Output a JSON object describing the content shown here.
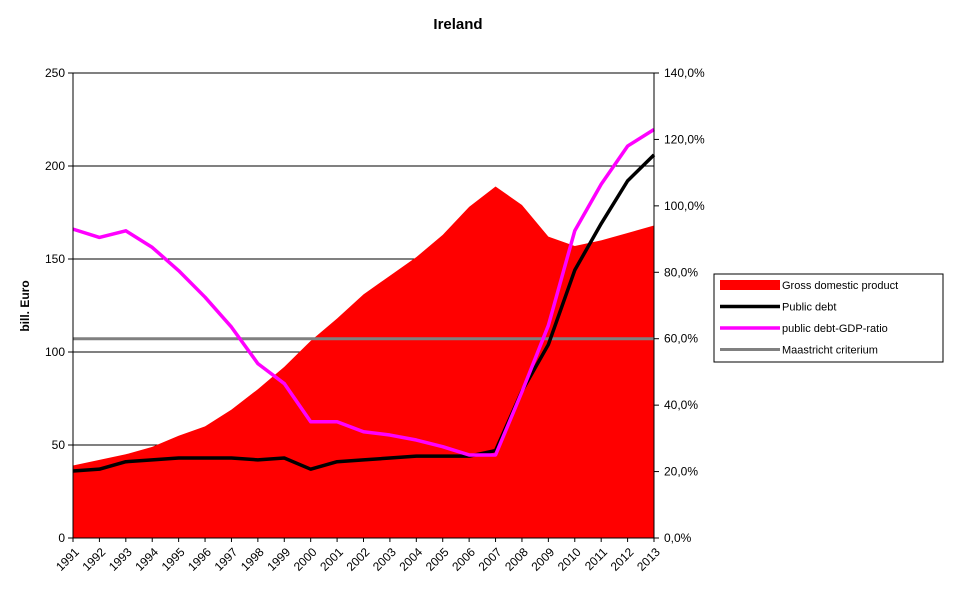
{
  "chart_data": {
    "type": "area",
    "title": "Ireland",
    "ylabel": "bill. Euro",
    "ylim": [
      0,
      250
    ],
    "y_ticks": [
      "0",
      "50",
      "100",
      "150",
      "200",
      "250"
    ],
    "y2lim": [
      0,
      140
    ],
    "y2_ticks": [
      "0,0%",
      "20,0%",
      "40,0%",
      "60,0%",
      "80,0%",
      "100,0%",
      "120,0%",
      "140,0%"
    ],
    "grid": true,
    "legend_position": "right",
    "categories": [
      "1991",
      "1992",
      "1993",
      "1994",
      "1995",
      "1996",
      "1997",
      "1998",
      "1999",
      "2000",
      "2001",
      "2002",
      "2003",
      "2004",
      "2005",
      "2006",
      "2007",
      "2008",
      "2009",
      "2010",
      "2011",
      "2012",
      "2013"
    ],
    "series": [
      {
        "name": "Gross domestic product",
        "kind": "area",
        "axis": "left",
        "color": "#ff0000",
        "values": [
          39,
          42,
          45,
          49,
          55,
          60,
          69,
          80,
          92,
          106,
          118,
          131,
          141,
          151,
          163,
          178,
          189,
          179,
          162,
          157,
          160,
          164,
          168
        ]
      },
      {
        "name": "Public debt",
        "kind": "line",
        "axis": "left",
        "color": "#000000",
        "values": [
          36,
          37,
          41,
          42,
          43,
          43,
          43,
          42,
          43,
          37,
          41,
          42,
          43,
          44,
          44,
          44,
          47,
          79,
          104,
          144,
          169,
          192,
          206
        ]
      },
      {
        "name": "public debt-GDP-ratio",
        "kind": "line",
        "axis": "right",
        "color": "#ff00ff",
        "values": [
          93,
          90.5,
          92.5,
          87.5,
          80.5,
          72.5,
          63.5,
          52.5,
          46.5,
          35,
          35,
          32,
          31,
          29.5,
          27.5,
          25,
          25,
          44,
          64,
          92.5,
          106.5,
          118,
          123
        ]
      },
      {
        "name": "Maastricht criterium",
        "kind": "line",
        "axis": "right",
        "color": "#808080",
        "values": [
          60,
          60,
          60,
          60,
          60,
          60,
          60,
          60,
          60,
          60,
          60,
          60,
          60,
          60,
          60,
          60,
          60,
          60,
          60,
          60,
          60,
          60,
          60
        ]
      }
    ]
  }
}
